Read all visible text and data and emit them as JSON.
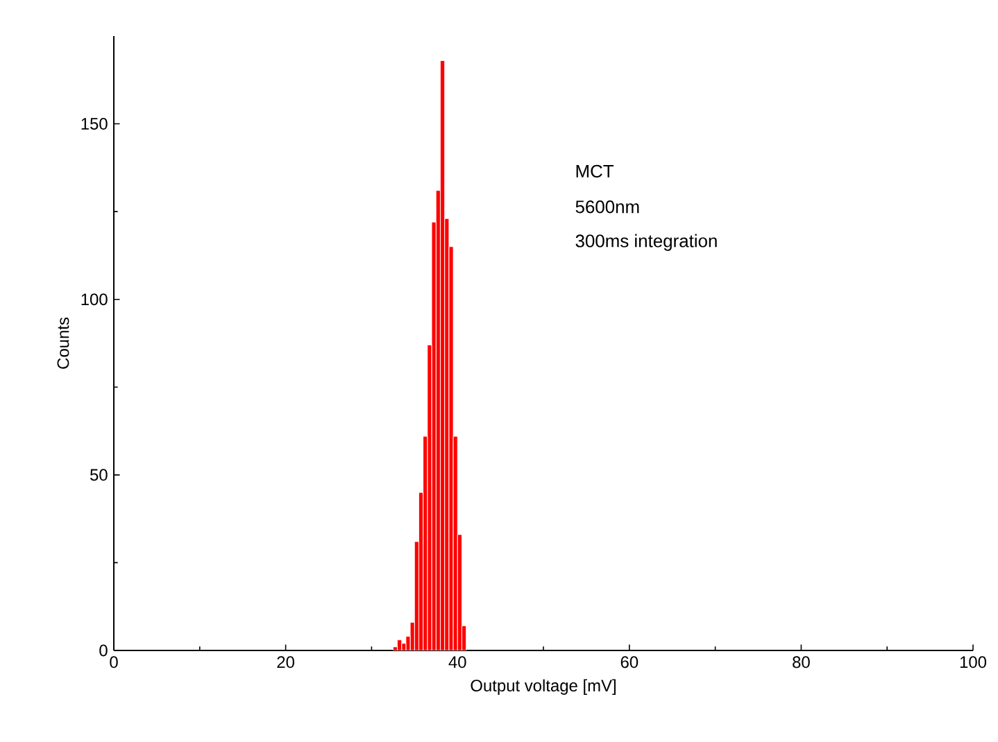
{
  "chart_data": {
    "type": "histogram",
    "xlabel": "Output voltage [mV]",
    "ylabel": "Counts",
    "annotations": [
      "MCT",
      "5600nm",
      "300ms integration"
    ],
    "bins": [
      32.5,
      33,
      33.5,
      34,
      34.5,
      35,
      35.5,
      36,
      36.5,
      37,
      37.5,
      38,
      38.5,
      39,
      39.5,
      40,
      40.5,
      41
    ],
    "values": [
      1,
      3,
      2,
      4,
      8,
      31,
      45,
      61,
      87,
      122,
      131,
      168,
      123,
      115,
      61,
      33,
      7
    ],
    "color": "#ff0000",
    "xlim": [
      0,
      100
    ],
    "xticks": [
      0,
      20,
      40,
      60,
      80,
      100
    ],
    "ylim": [
      0,
      175
    ],
    "yticks": [
      0,
      50,
      100,
      150
    ],
    "grid": false
  }
}
